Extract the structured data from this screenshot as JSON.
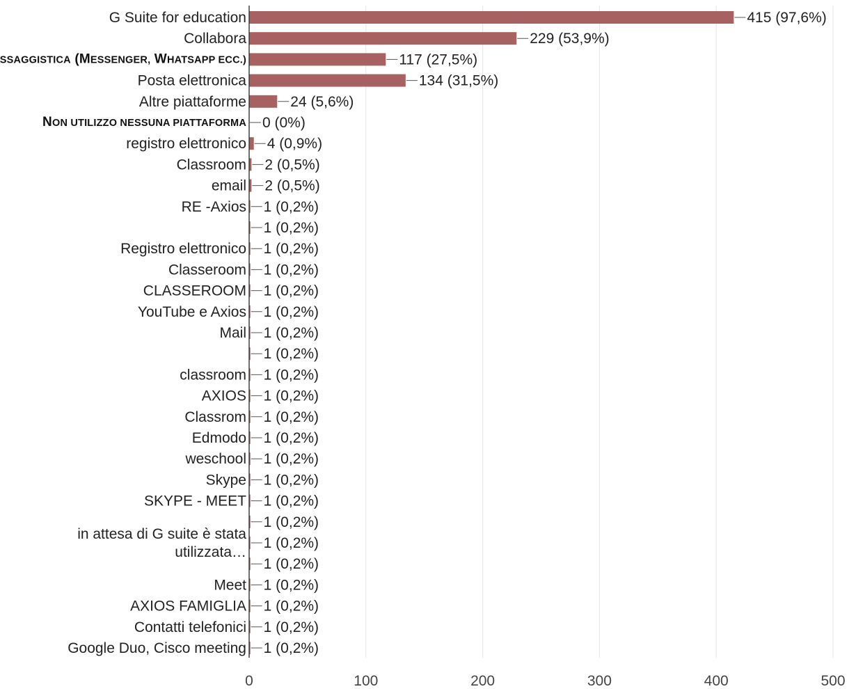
{
  "chart_data": {
    "type": "bar",
    "orientation": "horizontal",
    "title": "",
    "xlabel": "",
    "ylabel": "",
    "xlim": [
      0,
      500
    ],
    "x_ticks": [
      0,
      100,
      200,
      300,
      400,
      500
    ],
    "grid": true,
    "legend": "none",
    "bar_color": "#a86161",
    "categories": [
      {
        "label": "G Suite for education",
        "value": 415,
        "value_label": "415 (97,6%)"
      },
      {
        "label": "Collabora",
        "value": 229,
        "value_label": "229 (53,9%)"
      },
      {
        "label": "Messaggistica (Messenger, Whatsapp ecc.)",
        "value": 117,
        "value_label": "117 (27,5%)",
        "small_caps": true
      },
      {
        "label": "Posta elettronica",
        "value": 134,
        "value_label": "134 (31,5%)"
      },
      {
        "label": "Altre piattaforme",
        "value": 24,
        "value_label": "24 (5,6%)"
      },
      {
        "label": "Non utilizzo nessuna piattaforma",
        "value": 0,
        "value_label": "0 (0%)",
        "small_caps": true
      },
      {
        "label": "registro elettronico",
        "value": 4,
        "value_label": "4 (0,9%)"
      },
      {
        "label": "Classroom",
        "value": 2,
        "value_label": "2 (0,5%)"
      },
      {
        "label": "email",
        "value": 2,
        "value_label": "2 (0,5%)"
      },
      {
        "label": "RE -Axios",
        "value": 1,
        "value_label": "1 (0,2%)"
      },
      {
        "label": "",
        "value": 1,
        "value_label": "1 (0,2%)"
      },
      {
        "label": "Registro elettronico",
        "value": 1,
        "value_label": "1 (0,2%)"
      },
      {
        "label": "Classeroom",
        "value": 1,
        "value_label": "1 (0,2%)"
      },
      {
        "label": "CLASSEROOM",
        "value": 1,
        "value_label": "1 (0,2%)"
      },
      {
        "label": "YouTube e Axios",
        "value": 1,
        "value_label": "1 (0,2%)"
      },
      {
        "label": "Mail",
        "value": 1,
        "value_label": "1 (0,2%)"
      },
      {
        "label": "",
        "value": 1,
        "value_label": "1 (0,2%)"
      },
      {
        "label": "classroom",
        "value": 1,
        "value_label": "1 (0,2%)"
      },
      {
        "label": "AXIOS",
        "value": 1,
        "value_label": "1 (0,2%)"
      },
      {
        "label": "Classrom",
        "value": 1,
        "value_label": "1 (0,2%)"
      },
      {
        "label": "Edmodo",
        "value": 1,
        "value_label": "1 (0,2%)"
      },
      {
        "label": "weschool",
        "value": 1,
        "value_label": "1 (0,2%)"
      },
      {
        "label": "Skype",
        "value": 1,
        "value_label": "1 (0,2%)"
      },
      {
        "label": "SKYPE - MEET",
        "value": 1,
        "value_label": "1 (0,2%)"
      },
      {
        "label": "",
        "value": 1,
        "value_label": "1 (0,2%)"
      },
      {
        "label": "",
        "value": 1,
        "value_label": "1 (0,2%)"
      },
      {
        "label": "",
        "value": 1,
        "value_label": "1 (0,2%)"
      },
      {
        "label": "Meet",
        "value": 1,
        "value_label": "1 (0,2%)"
      },
      {
        "label": "AXIOS FAMIGLIA",
        "value": 1,
        "value_label": "1 (0,2%)"
      },
      {
        "label": "Contatti telefonici",
        "value": 1,
        "value_label": "1 (0,2%)"
      },
      {
        "label": "Google Duo, Cisco meeting",
        "value": 1,
        "value_label": "1 (0,2%)"
      }
    ],
    "annotations": [
      {
        "text_lines": [
          "in attesa di G suite è stata",
          "utilizzata…"
        ],
        "rows": [
          24,
          26
        ]
      }
    ]
  }
}
